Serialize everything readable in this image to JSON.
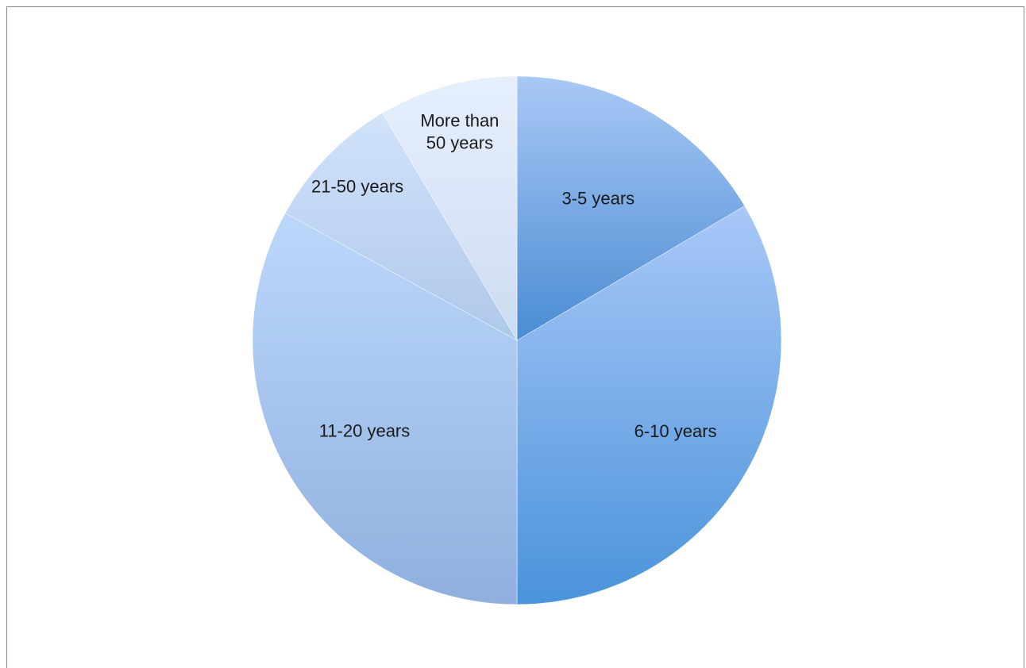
{
  "chart_data": {
    "type": "pie",
    "title": "",
    "start_angle_deg": 0,
    "direction": "clockwise",
    "slices": [
      {
        "label": "3-5 years",
        "label_lines": [
          "3-5 years"
        ],
        "value": 16.5,
        "color_top": "#a9c8f5",
        "color_bottom": "#4a8cd3"
      },
      {
        "label": "6-10 years",
        "label_lines": [
          "6-10 years"
        ],
        "value": 33.5,
        "color_top": "#a9c8f7",
        "color_bottom": "#4a93db"
      },
      {
        "label": "11-20 years",
        "label_lines": [
          "11-20 years"
        ],
        "value": 33.0,
        "color_top": "#bcd7fb",
        "color_bottom": "#8fb0de"
      },
      {
        "label": "21-50 years",
        "label_lines": [
          "21-50 years"
        ],
        "value": 8.5,
        "color_top": "#d2e3fb",
        "color_bottom": "#aec8ea"
      },
      {
        "label": "More than 50 years",
        "label_lines": [
          "More than",
          "50 years"
        ],
        "value": 8.5,
        "color_top": "#e6effd",
        "color_bottom": "#cddcf1"
      }
    ]
  }
}
